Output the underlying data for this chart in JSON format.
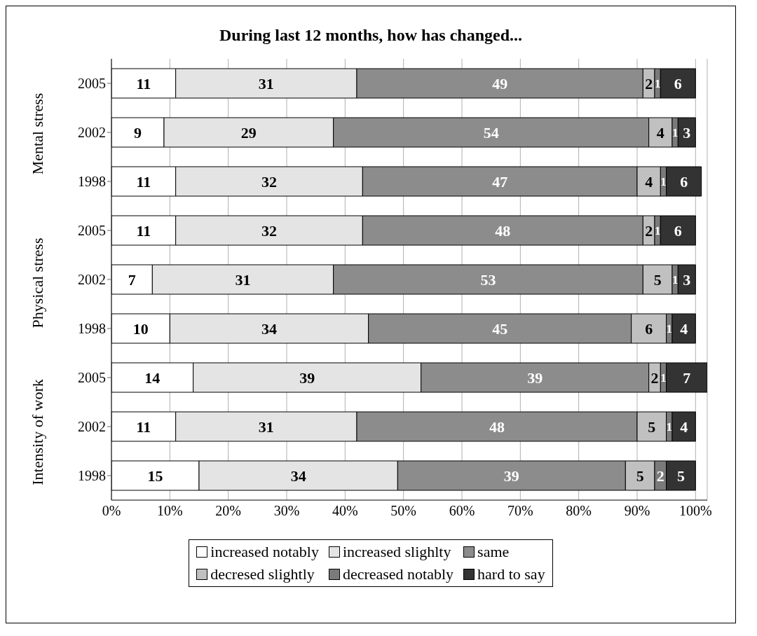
{
  "chart_data": {
    "type": "bar",
    "orientation": "horizontal",
    "stacked": true,
    "title": "During last 12 months, how has changed...",
    "categories": [
      "2005",
      "2002",
      "1998",
      "2005",
      "2002",
      "1998",
      "2005",
      "2002",
      "1998"
    ],
    "annotations": [
      "Mental stress",
      "Physical stress",
      "Intensity of work"
    ],
    "series": [
      {
        "name": "increased notably",
        "color": "#ffffff",
        "values": [
          11,
          9,
          11,
          11,
          7,
          10,
          14,
          11,
          15
        ]
      },
      {
        "name": "increased slighlty",
        "color": "#e4e4e4",
        "values": [
          31,
          29,
          32,
          32,
          31,
          34,
          39,
          31,
          34
        ]
      },
      {
        "name": "same",
        "color": "#8c8c8c",
        "values": [
          49,
          54,
          47,
          48,
          53,
          45,
          39,
          48,
          39
        ]
      },
      {
        "name": "decresed slightly",
        "color": "#c0c0c0",
        "values": [
          2,
          4,
          4,
          2,
          5,
          6,
          2,
          5,
          5
        ]
      },
      {
        "name": "decreased notably",
        "color": "#7a7a7a",
        "values": [
          1,
          1,
          1,
          1,
          1,
          1,
          1,
          1,
          2
        ]
      },
      {
        "name": "hard to say",
        "color": "#333333",
        "values": [
          6,
          3,
          6,
          6,
          3,
          4,
          7,
          4,
          5
        ]
      }
    ],
    "xlim": [
      0,
      102
    ],
    "xticks": [
      {
        "value": 0,
        "label": "0%"
      },
      {
        "value": 10,
        "label": "10%"
      },
      {
        "value": 20,
        "label": "20%"
      },
      {
        "value": 30,
        "label": "30%"
      },
      {
        "value": 40,
        "label": "40%"
      },
      {
        "value": 50,
        "label": "50%"
      },
      {
        "value": 60,
        "label": "60%"
      },
      {
        "value": 70,
        "label": "70%"
      },
      {
        "value": 80,
        "label": "80%"
      },
      {
        "value": 90,
        "label": "90%"
      },
      {
        "value": 100,
        "label": "100%"
      }
    ],
    "grid": "x",
    "legend": "bottom",
    "data_labels": true
  }
}
